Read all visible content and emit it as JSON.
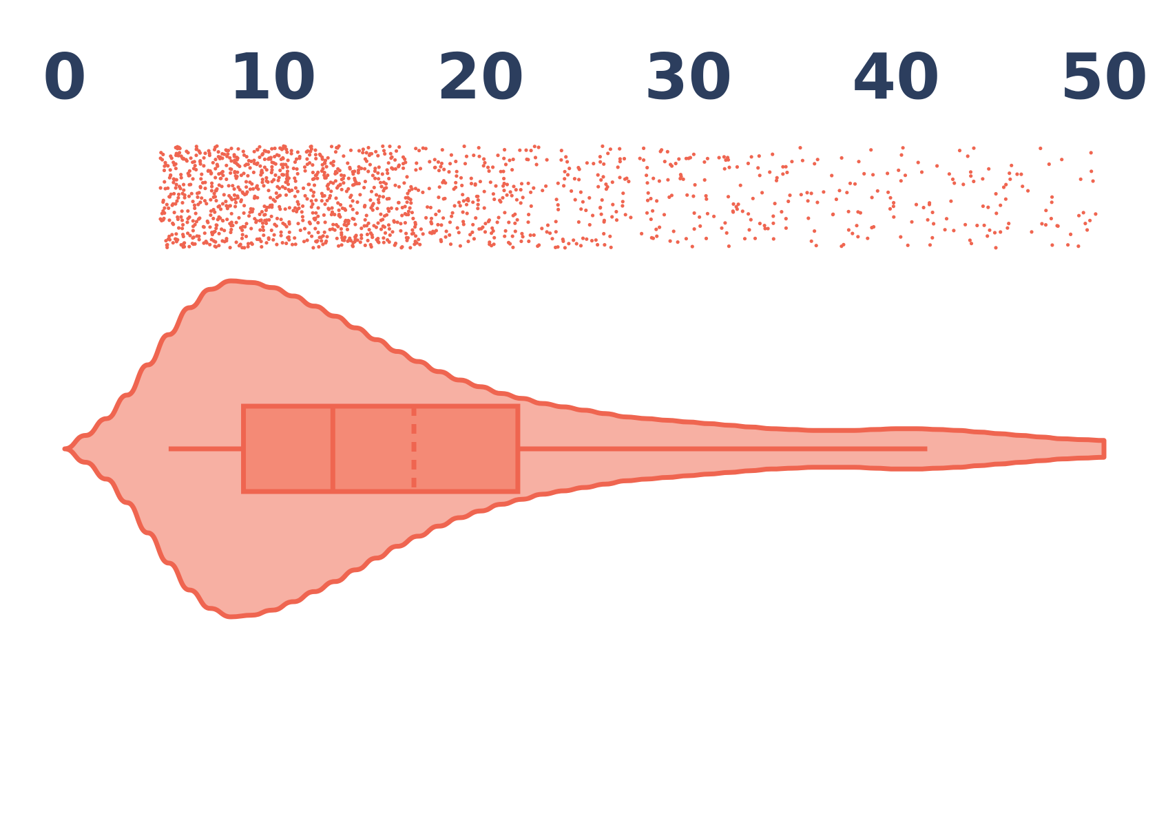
{
  "chart_data": {
    "type": "violin",
    "orientation": "horizontal",
    "title": "",
    "xlabel": "",
    "ylabel": "",
    "axis_position": "top",
    "grid": false,
    "legend": "none",
    "xlim": [
      0,
      50
    ],
    "x_ticks": [
      0,
      10,
      20,
      30,
      40,
      50
    ],
    "x_tick_labels": [
      "0",
      "10",
      "20",
      "30",
      "40",
      "50"
    ],
    "series": [
      {
        "box": {
          "whisker_low": 5,
          "q1": 8.6,
          "median": 12.9,
          "mean": 16.8,
          "q3": 21.8,
          "whisker_high": 41.5
        },
        "density": {
          "x": [
            0,
            1,
            2,
            3,
            4,
            5,
            6,
            7,
            8,
            9,
            10,
            11,
            12,
            13,
            14,
            15,
            16,
            17,
            18,
            19,
            20,
            21,
            22,
            23,
            24,
            25,
            26,
            27,
            28,
            29,
            30,
            31,
            32,
            33,
            34,
            35,
            36,
            37,
            38,
            39,
            40,
            41,
            42,
            43,
            44,
            45,
            46,
            47,
            48,
            49,
            50
          ],
          "y": [
            0.0,
            0.08,
            0.18,
            0.32,
            0.5,
            0.68,
            0.84,
            0.95,
            1.0,
            0.99,
            0.96,
            0.91,
            0.85,
            0.79,
            0.72,
            0.65,
            0.58,
            0.52,
            0.46,
            0.41,
            0.37,
            0.33,
            0.3,
            0.27,
            0.25,
            0.23,
            0.21,
            0.19,
            0.18,
            0.17,
            0.16,
            0.15,
            0.14,
            0.13,
            0.12,
            0.115,
            0.11,
            0.11,
            0.11,
            0.115,
            0.12,
            0.12,
            0.115,
            0.11,
            0.1,
            0.09,
            0.08,
            0.07,
            0.06,
            0.055,
            0.05
          ]
        },
        "raw_points": {
          "count": 1500,
          "x_min": 4.6,
          "x_max": 49.8
        }
      }
    ]
  },
  "colors": {
    "stroke": "#ef6550",
    "violin_fill": "#f7b0a3",
    "box_fill": "#f48a76",
    "point": "#ef6550",
    "tick_text": "#2c3e5e"
  }
}
